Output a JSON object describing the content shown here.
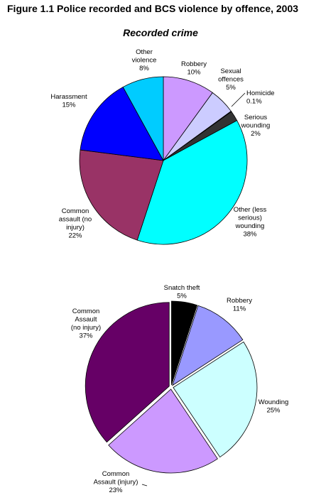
{
  "figure_title": "Figure 1.1 Police recorded and BCS violence by offence, 2003",
  "chart_data": [
    {
      "type": "pie",
      "title": "Recorded crime",
      "slices": [
        {
          "name": "Robbery",
          "value": 10,
          "label_lines": [
            "Robbery",
            "10%"
          ],
          "color": "#cc99ff"
        },
        {
          "name": "Sexual offences",
          "value": 5,
          "label_lines": [
            "Sexual",
            "offences",
            "5%"
          ],
          "color": "#ccccff"
        },
        {
          "name": "Homicide",
          "value": 0.1,
          "label_lines": [
            "Homicide",
            "0.1%"
          ],
          "color": "#1a1a1a"
        },
        {
          "name": "Serious wounding",
          "value": 2,
          "label_lines": [
            "Serious",
            "wounding",
            "2%"
          ],
          "color": "#333333"
        },
        {
          "name": "Other (less serious) wounding",
          "value": 38,
          "label_lines": [
            "Other (less",
            "serious)",
            "wounding",
            "38%"
          ],
          "color": "#00ffff"
        },
        {
          "name": "Common assault (no injury)",
          "value": 22,
          "label_lines": [
            "Common",
            "assault (no",
            "injury)",
            "22%"
          ],
          "color": "#993366"
        },
        {
          "name": "Harassment",
          "value": 15,
          "label_lines": [
            "Harassment",
            "15%"
          ],
          "color": "#0000ff"
        },
        {
          "name": "Other violence",
          "value": 8,
          "label_lines": [
            "Other",
            "violence",
            "8%"
          ],
          "color": "#00ccff"
        }
      ]
    },
    {
      "type": "pie",
      "title": "",
      "slices": [
        {
          "name": "Snatch theft",
          "value": 5,
          "label_lines": [
            "Snatch theft",
            "5%"
          ],
          "color": "#000000"
        },
        {
          "name": "Robbery",
          "value": 11,
          "label_lines": [
            "Robbery",
            "11%"
          ],
          "color": "#9999ff"
        },
        {
          "name": "Wounding",
          "value": 25,
          "label_lines": [
            "Wounding",
            "25%"
          ],
          "color": "#ccffff"
        },
        {
          "name": "Common Assault (injury)",
          "value": 23,
          "label_lines": [
            "Common",
            "Assault (injury)",
            "23%"
          ],
          "color": "#cc99ff"
        },
        {
          "name": "Common Assault (no injury)",
          "value": 37,
          "label_lines": [
            "Common",
            "Assault",
            "(no injury)",
            "37%"
          ],
          "color": "#660066"
        }
      ]
    }
  ]
}
